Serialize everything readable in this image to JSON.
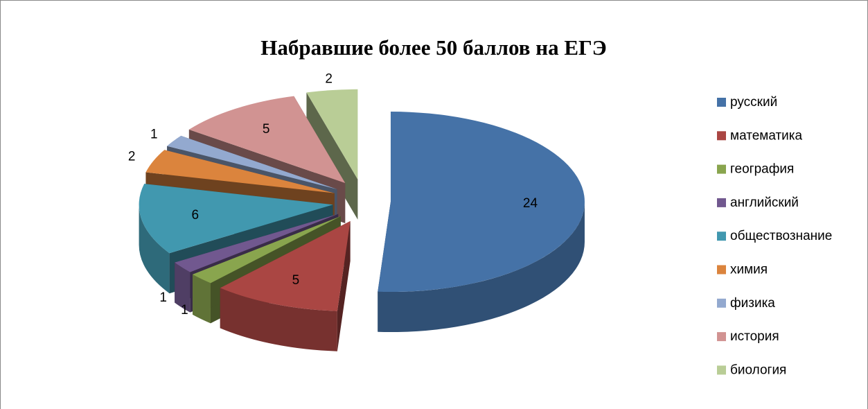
{
  "chart_data": {
    "type": "pie",
    "title": "Набравшие более 50 баллов на ЕГЭ",
    "categories": [
      "русский",
      "математика",
      "география",
      "английский",
      "обществознание",
      "химия",
      "физика",
      "история",
      "биология"
    ],
    "values": [
      24,
      5,
      1,
      1,
      6,
      2,
      1,
      5,
      2
    ],
    "colors": [
      "#4572a7",
      "#aa4643",
      "#89a54e",
      "#71588f",
      "#4198af",
      "#db843d",
      "#93a9cf",
      "#d19392",
      "#b9cd96"
    ],
    "legend": "right"
  }
}
